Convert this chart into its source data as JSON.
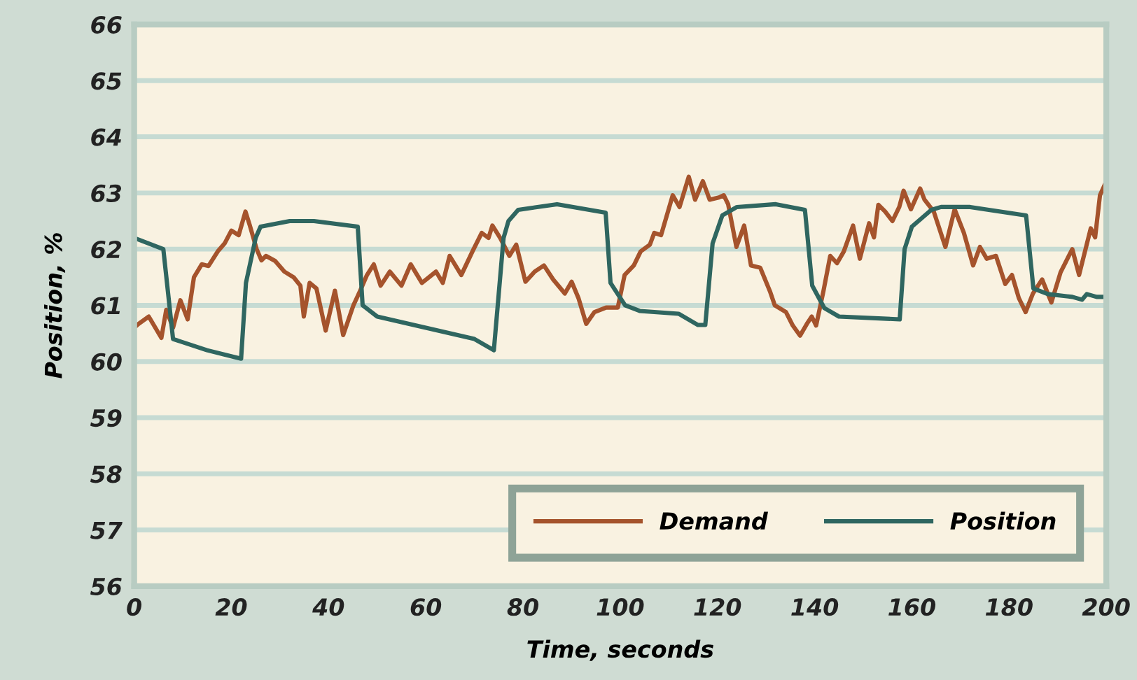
{
  "chart_data": {
    "type": "line",
    "xlabel": "Time, seconds",
    "ylabel": "Position, %",
    "xlim": [
      0,
      200
    ],
    "xticks": [
      0,
      20,
      40,
      60,
      80,
      100,
      120,
      140,
      160,
      180,
      200
    ],
    "ylim": [
      56,
      66
    ],
    "yticks": [
      56,
      57,
      58,
      59,
      60,
      61,
      62,
      63,
      64,
      65,
      66
    ],
    "grid": "y",
    "legend": "bottom right",
    "line_style": "solid",
    "marker": "none",
    "series": [
      {
        "name": "Demand",
        "color": "#a5532c",
        "x": [
          0,
          0.9,
          3,
          5.6,
          6.6,
          8,
          9.5,
          11,
          12.3,
          13.9,
          15.3,
          17.2,
          18.6,
          20,
          21.5,
          22.9,
          23.8,
          25.2,
          26.2,
          27.1,
          29,
          30.9,
          32.8,
          34.2,
          34.9,
          36.1,
          37.5,
          39.4,
          41.3,
          43,
          45.1,
          46.5,
          47.9,
          49.3,
          50.7,
          52.6,
          55,
          56.9,
          59.2,
          62.1,
          63.5,
          64.9,
          67.3,
          69.6,
          71.5,
          72.9,
          73.7,
          75.3,
          77.2,
          78.6,
          80.5,
          82.4,
          84.3,
          86.2,
          88.6,
          90,
          91.4,
          93,
          94.7,
          97.1,
          99.5,
          100.9,
          102.8,
          104.2,
          106.1,
          107,
          108.4,
          110.8,
          112.2,
          114.1,
          115.4,
          117,
          118.4,
          120.3,
          121.3,
          122.2,
          123.9,
          125.5,
          126.9,
          128.8,
          130.8,
          131.8,
          134.1,
          135.5,
          137,
          138.4,
          139.4,
          140.3,
          141.8,
          143.2,
          144.6,
          146,
          147.9,
          149.3,
          151.2,
          152.2,
          153.1,
          154.5,
          156,
          157.4,
          158.3,
          159.8,
          161.7,
          162.6,
          164.5,
          166.9,
          168.8,
          170.7,
          172.6,
          174,
          175.4,
          177.3,
          179.2,
          180.6,
          182,
          183.4,
          184.9,
          186.8,
          188.7,
          190.6,
          193,
          194.4,
          196.8,
          197.7,
          198.7,
          199.6
        ],
        "values": [
          60.6,
          60.67,
          60.8,
          60.42,
          60.92,
          60.6,
          61.09,
          60.75,
          61.5,
          61.73,
          61.7,
          61.96,
          62.1,
          62.33,
          62.25,
          62.67,
          62.42,
          62.0,
          61.8,
          61.88,
          61.79,
          61.6,
          61.5,
          61.35,
          60.8,
          61.4,
          61.3,
          60.55,
          61.26,
          60.47,
          61.0,
          61.26,
          61.54,
          61.73,
          61.35,
          61.6,
          61.35,
          61.73,
          61.4,
          61.6,
          61.4,
          61.88,
          61.54,
          61.96,
          62.29,
          62.2,
          62.42,
          62.2,
          61.88,
          62.08,
          61.42,
          61.6,
          61.71,
          61.46,
          61.21,
          61.42,
          61.13,
          60.67,
          60.88,
          60.96,
          60.96,
          61.54,
          61.71,
          61.96,
          62.08,
          62.29,
          62.25,
          62.96,
          62.75,
          63.29,
          62.88,
          63.21,
          62.88,
          62.92,
          62.96,
          62.8,
          62.04,
          62.42,
          61.71,
          61.67,
          61.25,
          61.0,
          60.88,
          60.64,
          60.46,
          60.67,
          60.8,
          60.64,
          61.25,
          61.88,
          61.75,
          61.96,
          62.42,
          61.83,
          62.46,
          62.21,
          62.79,
          62.67,
          62.5,
          62.75,
          63.04,
          62.71,
          63.08,
          62.88,
          62.67,
          62.04,
          62.71,
          62.29,
          61.71,
          62.04,
          61.83,
          61.88,
          61.38,
          61.54,
          61.13,
          60.88,
          61.21,
          61.46,
          61.05,
          61.59,
          62.0,
          61.54,
          62.37,
          62.21,
          62.96,
          63.13
        ]
      },
      {
        "name": "Position",
        "color": "#2f6660",
        "x": [
          0,
          6,
          8,
          15,
          22,
          23,
          25,
          26,
          32,
          37,
          46,
          47,
          50,
          60,
          70,
          74,
          75,
          76,
          77,
          79,
          87,
          97,
          98,
          101,
          104,
          112,
          116,
          117.5,
          119,
          121,
          124,
          132,
          138,
          139.5,
          142,
          145,
          157.5,
          158.5,
          160,
          164,
          166,
          172,
          183.5,
          185,
          188,
          193,
          195,
          196,
          198,
          200
        ],
        "values": [
          62.2,
          62.0,
          60.4,
          60.2,
          60.05,
          61.4,
          62.2,
          62.4,
          62.5,
          62.5,
          62.4,
          61.0,
          60.8,
          60.6,
          60.4,
          60.2,
          61.2,
          62.2,
          62.5,
          62.7,
          62.8,
          62.65,
          61.4,
          61.0,
          60.9,
          60.85,
          60.65,
          60.65,
          62.1,
          62.6,
          62.75,
          62.8,
          62.7,
          61.35,
          60.95,
          60.8,
          60.75,
          62.0,
          62.4,
          62.7,
          62.75,
          62.75,
          62.6,
          61.3,
          61.2,
          61.15,
          61.1,
          61.2,
          61.15,
          61.15
        ]
      }
    ]
  }
}
